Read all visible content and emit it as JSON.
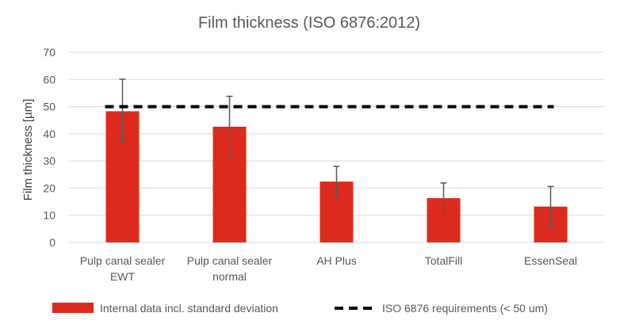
{
  "colors": {
    "bar": "#DC2A1E",
    "error_bar": "#595959",
    "requirement_line": "#000000",
    "grid": "#D9D9D9",
    "text": "#595959"
  },
  "chart_data": {
    "type": "bar",
    "title": "Film thickness (ISO 6876:2012)",
    "xlabel": "",
    "ylabel": "Film thickness [µm]",
    "ylim": [
      0,
      70
    ],
    "yticks": [
      0,
      10,
      20,
      30,
      40,
      50,
      60,
      70
    ],
    "grid": true,
    "legend_position": "bottom",
    "categories": [
      [
        "Pulp canal sealer",
        "EWT"
      ],
      [
        "Pulp canal sealer",
        "normal"
      ],
      [
        "AH Plus"
      ],
      [
        "TotalFill"
      ],
      [
        "EssenSeal"
      ]
    ],
    "series": [
      {
        "name": "Internal data incl. standard deviation",
        "type": "bar",
        "values": [
          48.3,
          42.6,
          22.4,
          16.3,
          13.2
        ],
        "error": [
          11.8,
          11.2,
          5.6,
          5.6,
          7.4
        ]
      },
      {
        "name": "ISO 6876 requirements (< 50 um)",
        "type": "line",
        "style": "dashed",
        "value": 50,
        "from_category": 0,
        "to_category": 4
      }
    ]
  }
}
